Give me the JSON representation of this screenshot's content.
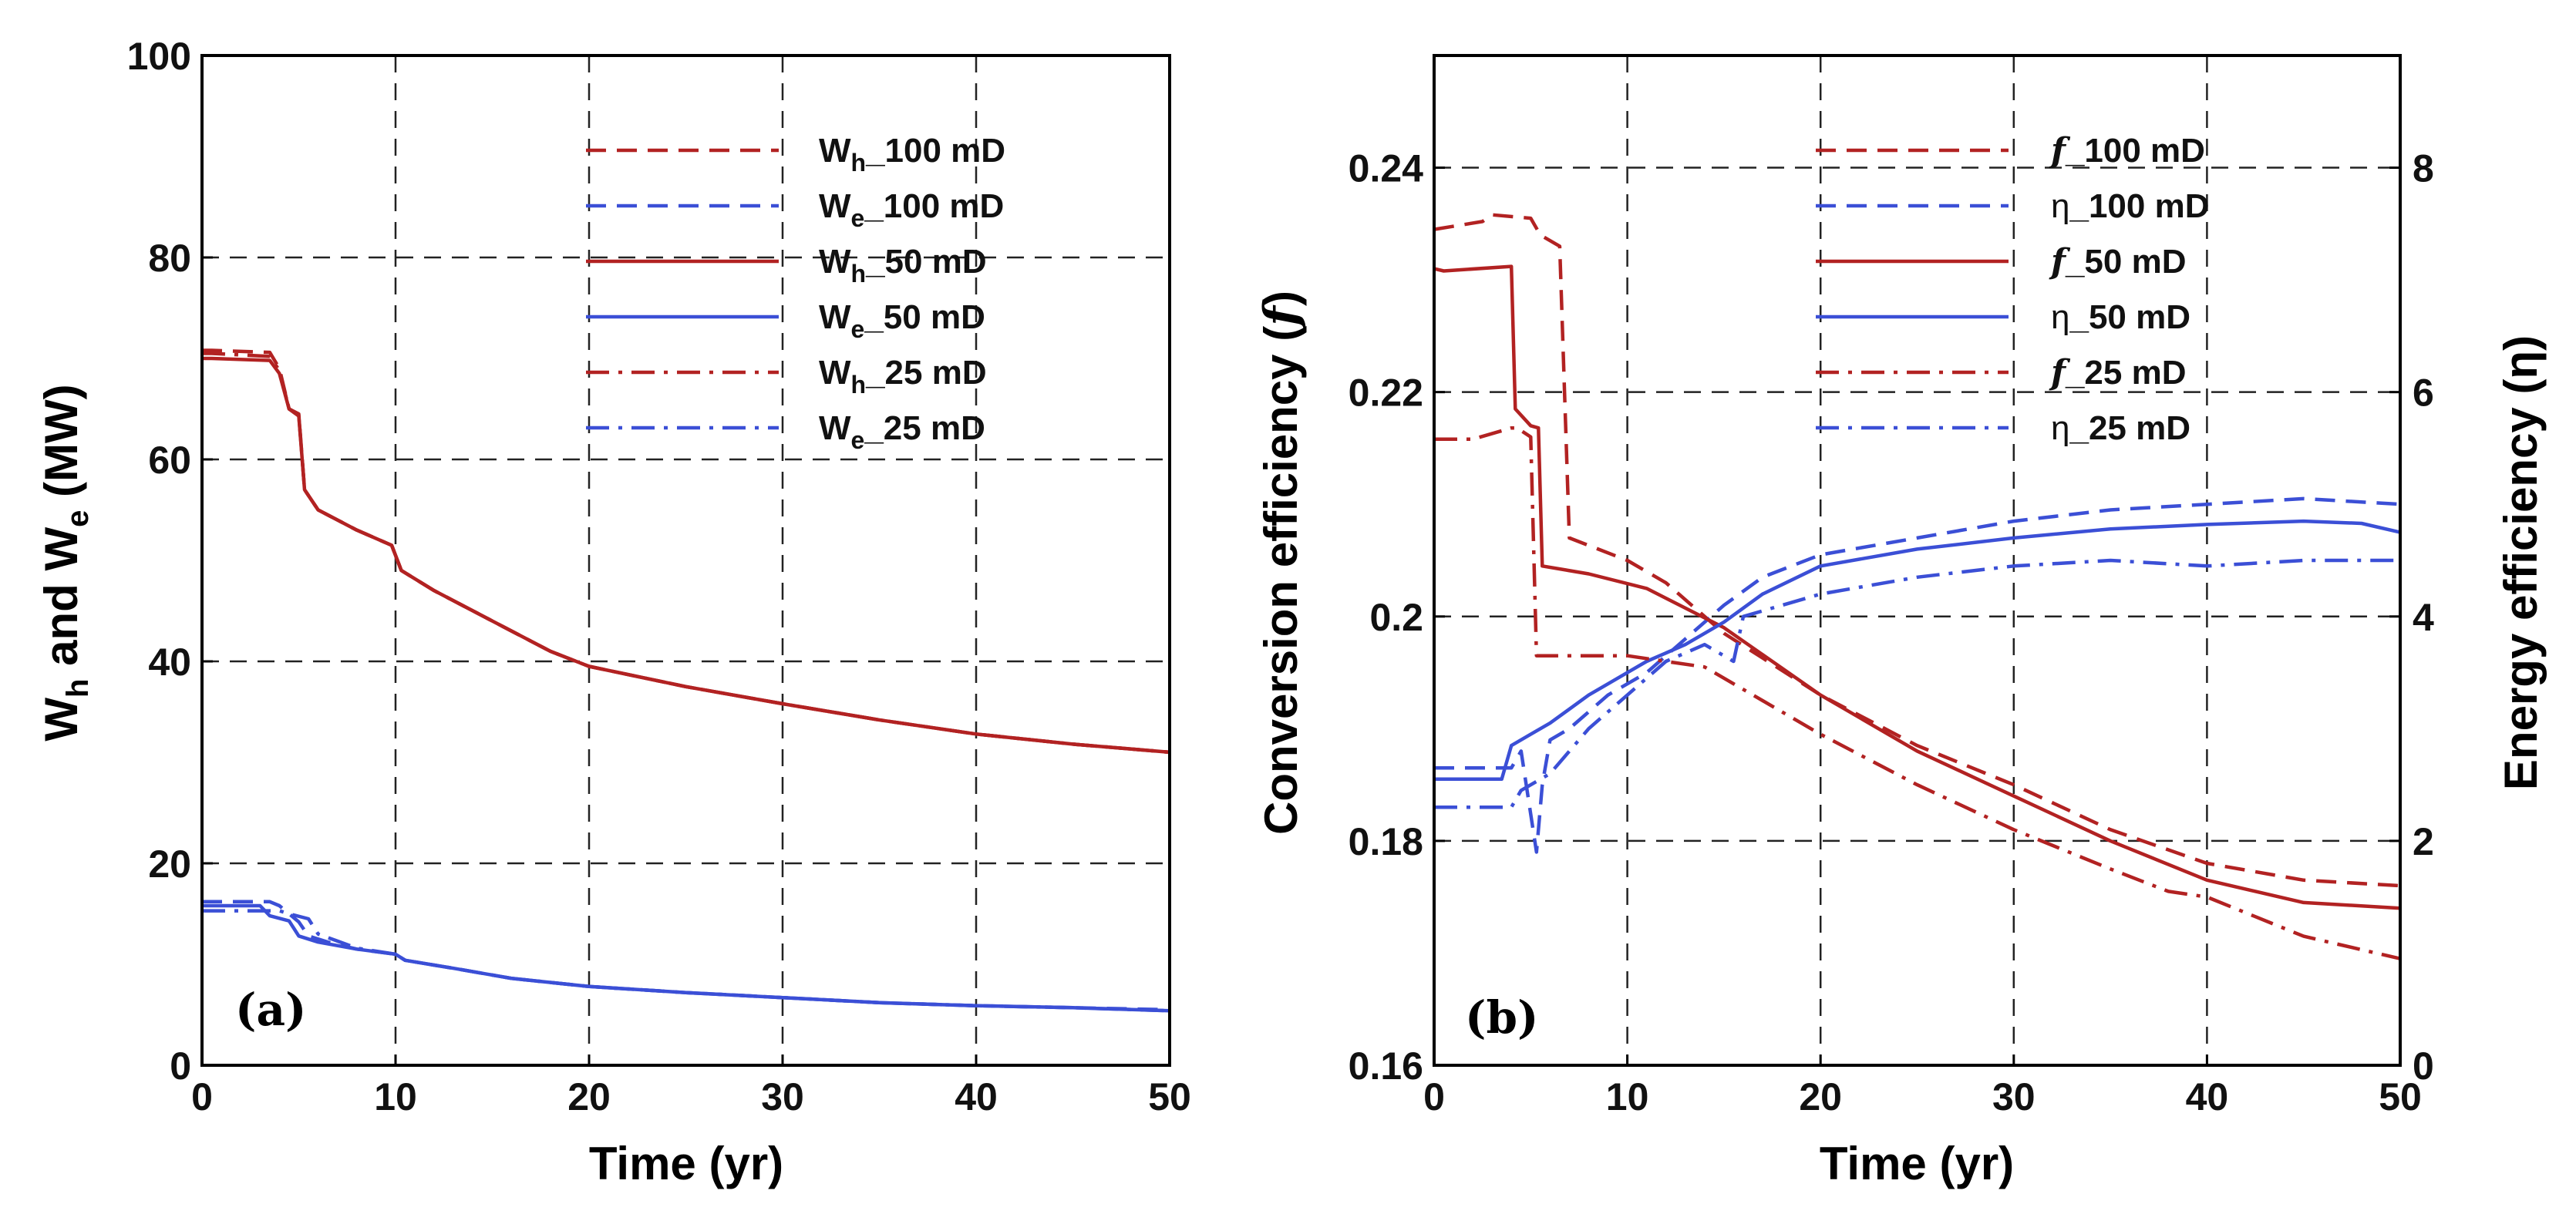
{
  "chart_data": [
    {
      "panel": "(a)",
      "type": "line",
      "xlabel": "Time (yr)",
      "ylabel": "W_h and W_e (MW)",
      "ylabel_parts": {
        "w1": "W",
        "s1": "h",
        "mid": " and ",
        "w2": "W",
        "s2": "e",
        "unit": " (MW)"
      },
      "xlim": [
        0,
        50
      ],
      "ylim": [
        0,
        100
      ],
      "xticks": [
        0,
        10,
        20,
        30,
        40,
        50
      ],
      "yticks": [
        0,
        20,
        40,
        60,
        80,
        100
      ],
      "grid": true,
      "legend_position": "top-right",
      "series": [
        {
          "name": "W_h_100 mD",
          "legend": {
            "main": "W",
            "sub": "h",
            "suffix": "_100 mD"
          },
          "color": "#b22222",
          "dash": "dashed",
          "x": [
            0,
            0.5,
            3.5,
            4,
            4.5,
            5,
            5.3,
            6,
            8,
            9.8,
            10.3,
            12,
            15,
            18,
            20,
            25,
            30,
            35,
            40,
            45,
            50
          ],
          "y": [
            70.8,
            70.8,
            70.6,
            69,
            65,
            64.5,
            57,
            55,
            53,
            51.5,
            49,
            47,
            44,
            41,
            39.5,
            37.5,
            35.8,
            34.2,
            32.8,
            31.8,
            31
          ]
        },
        {
          "name": "W_e_100 mD",
          "legend": {
            "main": "W",
            "sub": "e",
            "suffix": "_100 mD"
          },
          "color": "#3b4fd6",
          "dash": "dashed",
          "x": [
            0,
            3.5,
            4,
            5,
            5.5,
            6.5,
            8,
            10,
            10.5,
            13,
            16,
            20,
            25,
            30,
            35,
            40,
            45,
            50
          ],
          "y": [
            16.2,
            16.2,
            15.8,
            14.2,
            12.8,
            12.2,
            11.5,
            11,
            10.4,
            9.6,
            8.6,
            7.8,
            7.2,
            6.7,
            6.2,
            5.9,
            5.7,
            5.5
          ]
        },
        {
          "name": "W_h_50 mD",
          "legend": {
            "main": "W",
            "sub": "h",
            "suffix": "_50 mD"
          },
          "color": "#b22222",
          "dash": "solid",
          "x": [
            0,
            0.5,
            3.5,
            4,
            4.5,
            5,
            5.3,
            6,
            8,
            9.8,
            10.3,
            12,
            15,
            18,
            20,
            25,
            30,
            35,
            40,
            45,
            50
          ],
          "y": [
            70,
            70,
            69.8,
            68.5,
            65,
            64.3,
            57,
            55,
            53,
            51.5,
            49,
            47,
            44,
            41,
            39.5,
            37.5,
            35.8,
            34.2,
            32.8,
            31.8,
            31
          ]
        },
        {
          "name": "W_e_50 mD",
          "legend": {
            "main": "W",
            "sub": "e",
            "suffix": "_50 mD"
          },
          "color": "#3b4fd6",
          "dash": "solid",
          "x": [
            0,
            3,
            3.5,
            4.5,
            5,
            6,
            8,
            10,
            10.5,
            13,
            16,
            20,
            25,
            30,
            35,
            40,
            45,
            50
          ],
          "y": [
            15.8,
            15.8,
            14.8,
            14.3,
            12.8,
            12.2,
            11.5,
            11,
            10.4,
            9.6,
            8.6,
            7.8,
            7.2,
            6.7,
            6.2,
            5.9,
            5.7,
            5.4
          ]
        },
        {
          "name": "W_h_25 mD",
          "legend": {
            "main": "W",
            "sub": "h",
            "suffix": "_25 mD"
          },
          "color": "#b22222",
          "dash": "dashdot",
          "x": [
            0,
            0.5,
            3.5,
            4,
            4.5,
            5,
            5.3,
            6,
            8,
            9.8,
            10.3,
            12,
            15,
            18,
            20,
            25,
            30,
            35,
            40,
            45,
            50
          ],
          "y": [
            70.5,
            70.5,
            70.2,
            68.8,
            65,
            64.4,
            57,
            55,
            53,
            51.5,
            49,
            47,
            44,
            41,
            39.5,
            37.5,
            35.8,
            34.2,
            32.8,
            31.8,
            31
          ]
        },
        {
          "name": "W_e_25 mD",
          "legend": {
            "main": "W",
            "sub": "e",
            "suffix": "_25 mD"
          },
          "color": "#3b4fd6",
          "dash": "dashdot",
          "x": [
            0,
            4,
            4.5,
            5.5,
            6,
            7,
            8,
            10,
            10.5,
            13,
            16,
            20,
            25,
            30,
            35,
            40,
            45,
            50
          ],
          "y": [
            15.3,
            15.3,
            15,
            14.5,
            13,
            12.3,
            11.6,
            11,
            10.4,
            9.6,
            8.6,
            7.8,
            7.2,
            6.7,
            6.2,
            5.9,
            5.7,
            5.4
          ]
        }
      ]
    },
    {
      "panel": "(b)",
      "type": "line",
      "xlabel": "Time (yr)",
      "ylabel_left": "Conversion efficiency (f)",
      "ylabel_left_parts": {
        "pre": "Conversion efficiency (",
        "sym": "f",
        "post": ")"
      },
      "ylabel_right": "Energy efficiency (η)",
      "xlim": [
        0,
        50
      ],
      "ylim_left": [
        0.16,
        0.25
      ],
      "ylim_right": [
        0,
        9
      ],
      "xticks": [
        0,
        10,
        20,
        30,
        40,
        50
      ],
      "yticks_left": [
        0.16,
        0.18,
        0.2,
        0.22,
        0.24
      ],
      "yticks_right": [
        0,
        2,
        4,
        6,
        8
      ],
      "grid": true,
      "legend_position": "top-right",
      "series": [
        {
          "name": "f_100 mD",
          "legend": {
            "sym": "f",
            "suffix": "_100 mD"
          },
          "axis": "left",
          "color": "#b22222",
          "dash": "dashed",
          "x": [
            0,
            2.5,
            3,
            5,
            5.5,
            6.5,
            7,
            10,
            12,
            15,
            20,
            25,
            30,
            35,
            40,
            45,
            50
          ],
          "y": [
            0.2345,
            0.2352,
            0.2358,
            0.2355,
            0.234,
            0.233,
            0.207,
            0.205,
            0.203,
            0.1985,
            0.193,
            0.1885,
            0.185,
            0.181,
            0.178,
            0.1765,
            0.176
          ]
        },
        {
          "name": "η_100 mD",
          "legend": {
            "sym": "η",
            "suffix": "_100 mD"
          },
          "axis": "right",
          "color": "#3b4fd6",
          "dash": "dashed",
          "x": [
            0,
            4,
            4.5,
            5.3,
            5.6,
            6,
            7,
            9,
            11,
            13,
            15,
            17,
            20,
            25,
            30,
            35,
            40,
            45,
            50
          ],
          "y": [
            2.65,
            2.65,
            2.8,
            1.9,
            2.5,
            2.9,
            3.0,
            3.3,
            3.5,
            3.8,
            4.1,
            4.35,
            4.55,
            4.7,
            4.85,
            4.95,
            5.0,
            5.05,
            5.0
          ]
        },
        {
          "name": "f_50 mD",
          "legend": {
            "sym": "f",
            "suffix": "_50 mD"
          },
          "axis": "left",
          "color": "#b22222",
          "dash": "solid",
          "x": [
            0,
            0.5,
            4,
            4.2,
            5,
            5.4,
            5.6,
            8,
            11,
            15,
            20,
            25,
            30,
            35,
            40,
            45,
            50
          ],
          "y": [
            0.231,
            0.2308,
            0.2312,
            0.2185,
            0.217,
            0.2168,
            0.2045,
            0.2038,
            0.2025,
            0.199,
            0.193,
            0.188,
            0.184,
            0.18,
            0.1765,
            0.1745,
            0.174
          ]
        },
        {
          "name": "η_50 mD",
          "legend": {
            "sym": "η",
            "suffix": "_50 mD"
          },
          "axis": "right",
          "color": "#3b4fd6",
          "dash": "solid",
          "x": [
            0,
            3.5,
            4,
            5,
            6,
            8,
            10,
            11,
            13,
            15,
            17,
            20,
            25,
            30,
            35,
            40,
            45,
            48,
            50
          ],
          "y": [
            2.55,
            2.55,
            2.85,
            2.95,
            3.05,
            3.3,
            3.5,
            3.6,
            3.75,
            3.95,
            4.2,
            4.45,
            4.6,
            4.7,
            4.78,
            4.82,
            4.85,
            4.83,
            4.75
          ]
        },
        {
          "name": "f_25 mD",
          "legend": {
            "sym": "f",
            "suffix": "_25 mD"
          },
          "axis": "left",
          "color": "#b22222",
          "dash": "dashdot",
          "x": [
            0,
            2,
            4,
            4.3,
            5,
            5.3,
            10,
            14,
            15,
            20,
            25,
            30,
            35,
            38,
            40,
            45,
            50
          ],
          "y": [
            0.2158,
            0.2158,
            0.2168,
            0.2168,
            0.216,
            0.1965,
            0.1965,
            0.1955,
            0.1945,
            0.1895,
            0.185,
            0.181,
            0.1775,
            0.1755,
            0.175,
            0.1715,
            0.1695
          ]
        },
        {
          "name": "η_25 mD",
          "legend": {
            "sym": "η",
            "suffix": "_25 mD"
          },
          "axis": "right",
          "color": "#3b4fd6",
          "dash": "dashdot",
          "x": [
            0,
            4,
            4.5,
            6,
            8,
            10,
            12,
            14,
            15.5,
            16,
            17,
            20,
            25,
            30,
            35,
            40,
            45,
            50
          ],
          "y": [
            2.3,
            2.3,
            2.45,
            2.6,
            3.0,
            3.3,
            3.6,
            3.75,
            3.6,
            4.0,
            4.05,
            4.2,
            4.35,
            4.45,
            4.5,
            4.45,
            4.5,
            4.5
          ]
        }
      ]
    }
  ]
}
